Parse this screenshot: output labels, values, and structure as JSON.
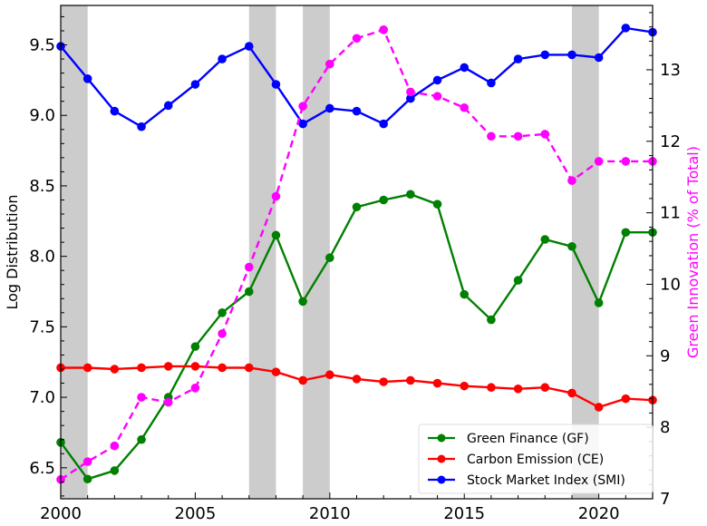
{
  "chart_data": {
    "type": "line",
    "x": [
      2000,
      2001,
      2002,
      2003,
      2004,
      2005,
      2006,
      2007,
      2008,
      2009,
      2010,
      2011,
      2012,
      2013,
      2014,
      2015,
      2016,
      2017,
      2018,
      2019,
      2020,
      2021,
      2022
    ],
    "x_ticks": [
      "2000",
      "2005",
      "2010",
      "2015",
      "2020"
    ],
    "xlim": [
      2000,
      2022
    ],
    "ylabel_left": "Log Distribution",
    "ylim_left": [
      6.28,
      9.78
    ],
    "yticks_left": [
      "6.5",
      "7.0",
      "7.5",
      "8.0",
      "8.5",
      "9.0",
      "9.5"
    ],
    "ylabel_right": "Green Innovation (% of Total)",
    "ylim_right": [
      7.0,
      13.9
    ],
    "yticks_right": [
      "7",
      "8",
      "9",
      "10",
      "11",
      "12",
      "13"
    ],
    "shaded_periods": [
      [
        2000,
        2001
      ],
      [
        2007,
        2008
      ],
      [
        2009,
        2010
      ],
      [
        2019,
        2020
      ]
    ],
    "grid": false,
    "legend_position": "lower-right",
    "colors": {
      "green_finance": "#008000",
      "carbon_emission": "#ff0000",
      "stock_market": "#0000ff",
      "green_innovation": "#ff00ff",
      "shade": "#cccccc"
    },
    "series": [
      {
        "name": "Green Finance (GF)",
        "axis": "left",
        "values": [
          6.68,
          6.42,
          6.48,
          6.7,
          7.0,
          7.36,
          7.6,
          7.75,
          8.15,
          7.68,
          7.99,
          8.35,
          8.4,
          8.44,
          8.37,
          7.73,
          7.55,
          7.83,
          8.12,
          8.07,
          7.67,
          8.17,
          8.17
        ]
      },
      {
        "name": "Carbon Emission (CE)",
        "axis": "left",
        "values": [
          7.21,
          7.21,
          7.2,
          7.21,
          7.22,
          7.22,
          7.21,
          7.21,
          7.18,
          7.12,
          7.16,
          7.13,
          7.11,
          7.12,
          7.1,
          7.08,
          7.07,
          7.06,
          7.07,
          7.03,
          6.93,
          6.99,
          6.98
        ]
      },
      {
        "name": "Stock Market Index (SMI)",
        "axis": "left",
        "values": [
          9.49,
          9.26,
          9.03,
          8.92,
          9.07,
          9.22,
          9.4,
          9.49,
          9.22,
          8.94,
          9.05,
          9.03,
          8.94,
          9.12,
          9.25,
          9.34,
          9.23,
          9.4,
          9.43,
          9.43,
          9.41,
          9.62,
          9.59
        ]
      },
      {
        "name": "",
        "axis": "right",
        "dashed": true,
        "values": [
          7.27,
          7.52,
          7.74,
          8.42,
          8.35,
          8.55,
          9.31,
          10.24,
          11.23,
          12.49,
          13.08,
          13.44,
          13.56,
          12.69,
          12.63,
          12.47,
          12.07,
          12.07,
          12.1,
          11.45,
          11.72,
          11.72,
          11.72
        ]
      }
    ],
    "legend": [
      "Green Finance (GF)",
      "Carbon Emission (CE)",
      "Stock Market Index (SMI)"
    ]
  }
}
